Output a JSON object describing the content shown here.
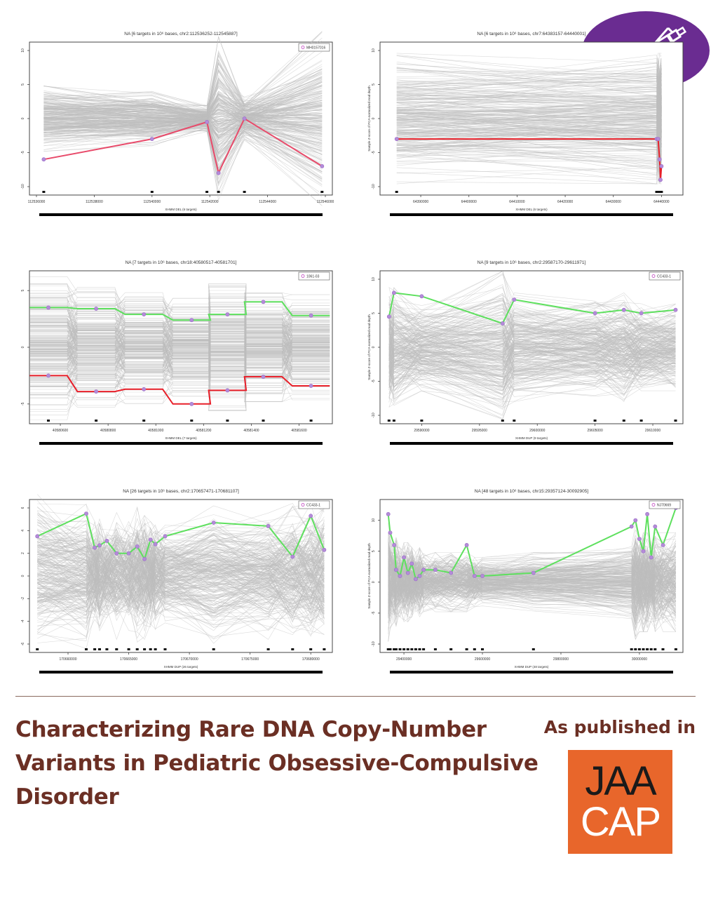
{
  "badge": {
    "icon": "pen-icon",
    "color": "#6a2c91"
  },
  "colors": {
    "ref": "#bdbdbd",
    "pink": "#e84a6a",
    "green": "#5ee05e",
    "red": "#e8202a",
    "marker": "#b48cd8",
    "headline": "#6b2f24",
    "logo_bg": "#e8662b"
  },
  "caption": {
    "headline": "Characterizing Rare DNA Copy-Number Variants in Pediatric Obsessive-Compulsive Disorder",
    "published_in": "As published in",
    "logo_line1": "JAA",
    "logo_line2": "CAP"
  },
  "chart_data": [
    {
      "type": "line",
      "title": "NA [6 targets in 10⁶ bases, chr2:112536252-112545887]",
      "legend": "MH0157016",
      "ylabel": "",
      "xlabel": "XHMM DEL (6 targets)",
      "xlim": [
        112536000,
        112546000
      ],
      "ylim": [
        -10,
        10
      ],
      "x_ticks": [
        "112536000",
        "112538000",
        "112540000",
        "112542000",
        "112544000",
        "112546000"
      ],
      "y_ticks": [
        "-10",
        "-5",
        "0",
        "5",
        "10"
      ],
      "targets": [
        112536252,
        112540000,
        112541900,
        112542300,
        112543200,
        112545887
      ],
      "ref_center": [
        0,
        0,
        0,
        0,
        0,
        0
      ],
      "ref_spread": [
        3,
        2.5,
        1.2,
        7.5,
        2,
        8
      ],
      "highlight": {
        "color": "pink",
        "values": [
          -6,
          -3,
          -0.5,
          -8,
          0,
          -7
        ]
      }
    },
    {
      "type": "line",
      "title": "NA [6 targets in 10⁶ bases, chr7:64383157-64440001]",
      "legend": "",
      "ylabel": "Sample Z-score of PCA-normalized read depth",
      "xlabel": "XHMM DEL (6 targets)",
      "xlim": [
        64383000,
        64443000
      ],
      "ylim": [
        -10,
        10
      ],
      "x_ticks": [
        "64390000",
        "64400000",
        "64410000",
        "64420000",
        "64430000",
        "64440000"
      ],
      "y_ticks": [
        "-10",
        "-5",
        "0",
        "5",
        "10"
      ],
      "targets": [
        64385000,
        64439000,
        64439300,
        64439600,
        64439800,
        64440001
      ],
      "ref_center": [
        0,
        0,
        0,
        0,
        0,
        0
      ],
      "ref_spread": [
        6,
        6,
        6,
        6,
        6,
        6
      ],
      "highlight": {
        "color": "red",
        "values": [
          -3,
          -3,
          -3,
          -6,
          -9,
          -7
        ]
      }
    },
    {
      "type": "step",
      "title": "NA [7 targets in 10⁶ bases, chr18:40580517-40581701]",
      "legend": "1061-03",
      "ylabel": "",
      "xlabel": "XHMM DEL (7 targets)",
      "xlim": [
        40580500,
        40581710
      ],
      "ylim": [
        -6,
        6
      ],
      "x_ticks": [
        "40580600",
        "40580800",
        "40581000",
        "40581200",
        "40581400",
        "40581600"
      ],
      "y_ticks": [
        "-5",
        "0",
        "5"
      ],
      "targets": [
        40580550,
        40580750,
        40580950,
        40581150,
        40581300,
        40581450,
        40581650
      ],
      "ref_center": [
        0,
        0,
        0,
        0,
        0,
        0,
        0
      ],
      "ref_spread": [
        4,
        3.3,
        3.1,
        2.7,
        3.5,
        3,
        2.9
      ],
      "highlight_series": [
        {
          "color": "green",
          "values": [
            3.5,
            3.4,
            2.9,
            2.4,
            2.9,
            4.0,
            2.8
          ]
        },
        {
          "color": "red",
          "values": [
            -2.5,
            -3.9,
            -3.7,
            -5.0,
            -3.8,
            -2.6,
            -3.4
          ]
        }
      ]
    },
    {
      "type": "line",
      "title": "NA [9 targets in 10⁶ bases, chr2:29587170-29611971]",
      "legend": "CC433-1",
      "ylabel": "Sample Z-score of PCA-normalized read depth",
      "xlabel": "XHMM DUP (9 targets)",
      "xlim": [
        29587000,
        29612000
      ],
      "ylim": [
        -10,
        10
      ],
      "x_ticks": [
        "29590000",
        "29595000",
        "29600000",
        "29605000",
        "29610000"
      ],
      "y_ticks": [
        "-10",
        "-5",
        "0",
        "5",
        "10"
      ],
      "targets": [
        29587170,
        29587600,
        29590000,
        29597000,
        29598000,
        29605000,
        29607500,
        29609000,
        29611971
      ],
      "ref_center": [
        0,
        0,
        0,
        0,
        0,
        0,
        0,
        0,
        0
      ],
      "ref_spread": [
        5.5,
        5.5,
        4,
        7,
        5,
        4.5,
        5,
        4,
        4
      ],
      "highlight": {
        "color": "green",
        "values": [
          4.5,
          8,
          7.5,
          3.5,
          7,
          5,
          5.5,
          5,
          5.5
        ]
      }
    },
    {
      "type": "line",
      "title": "NA [26 targets in 10⁶ bases, chr2:170657471-170681107]",
      "legend": "CC433-1",
      "ylabel": "",
      "xlabel": "XHMM DUP (26 targets)",
      "xlim": [
        170657400,
        170681200
      ],
      "ylim": [
        -6,
        6
      ],
      "x_ticks": [
        "170660000",
        "170665000",
        "170670000",
        "170675000",
        "170680000"
      ],
      "y_ticks": [
        "-6",
        "-4",
        "-2",
        "0",
        "2",
        "4",
        "6"
      ],
      "targets": [
        170657471,
        170661500,
        170662200,
        170662600,
        170663200,
        170664000,
        170665000,
        170665700,
        170666300,
        170666800,
        170667200,
        170668000,
        170672000,
        170676500,
        170678500,
        170680000,
        170681107
      ],
      "ref_center": [
        0,
        0,
        0,
        0,
        0,
        0,
        0,
        0,
        0,
        0,
        0,
        0,
        0,
        0,
        0,
        0,
        0
      ],
      "ref_spread": [
        4.5,
        4,
        3,
        3.2,
        2.8,
        3.5,
        3,
        3.8,
        3.5,
        3,
        3.2,
        3,
        4,
        3.5,
        4,
        4,
        4
      ],
      "highlight": {
        "color": "green",
        "values": [
          3.5,
          5.5,
          2.5,
          2.7,
          3.1,
          2,
          2,
          2.6,
          1.5,
          3.2,
          2.8,
          3.5,
          4.7,
          4.4,
          1.7,
          5.3,
          2.3
        ]
      }
    },
    {
      "type": "line",
      "title": "NA [48 targets in 10⁶ bases, chr15:29357124-30092905]",
      "legend": "NJ70669",
      "ylabel": "Sample Z-score of PCA-normalized read depth",
      "xlabel": "XHMM DUP (48 targets)",
      "xlim": [
        29357000,
        30093000
      ],
      "ylim": [
        -10,
        12
      ],
      "x_ticks": [
        "29400000",
        "29600000",
        "29800000",
        "30000000"
      ],
      "y_ticks": [
        "-10",
        "-5",
        "0",
        "5",
        "10"
      ],
      "targets": [
        29360000,
        29365000,
        29375000,
        29380000,
        29390000,
        29400000,
        29410000,
        29420000,
        29430000,
        29440000,
        29450000,
        29480000,
        29520000,
        29560000,
        29580000,
        29600000,
        29730000,
        29980000,
        29990000,
        30000000,
        30010000,
        30020000,
        30030000,
        30040000,
        30060000,
        30092905
      ],
      "ref_center": [
        0,
        0,
        0,
        0,
        0,
        0,
        0,
        0,
        0,
        0,
        0,
        0,
        0,
        0,
        0,
        0,
        0,
        0,
        0,
        0,
        0,
        0,
        0,
        0,
        0,
        0
      ],
      "ref_spread": [
        6,
        5,
        4,
        4.5,
        3.5,
        4,
        4,
        3.5,
        3,
        3.5,
        3,
        3,
        3,
        3,
        2.5,
        2.5,
        3,
        4,
        6,
        5,
        5,
        5,
        4,
        5,
        5,
        5
      ],
      "highlight": {
        "color": "green",
        "values": [
          11,
          8,
          6,
          2,
          1,
          4,
          1.5,
          3,
          0.5,
          1,
          2,
          2,
          1.5,
          6,
          1,
          1,
          1.5,
          9,
          10,
          7,
          5,
          11,
          4,
          9,
          6,
          12
        ]
      }
    }
  ]
}
